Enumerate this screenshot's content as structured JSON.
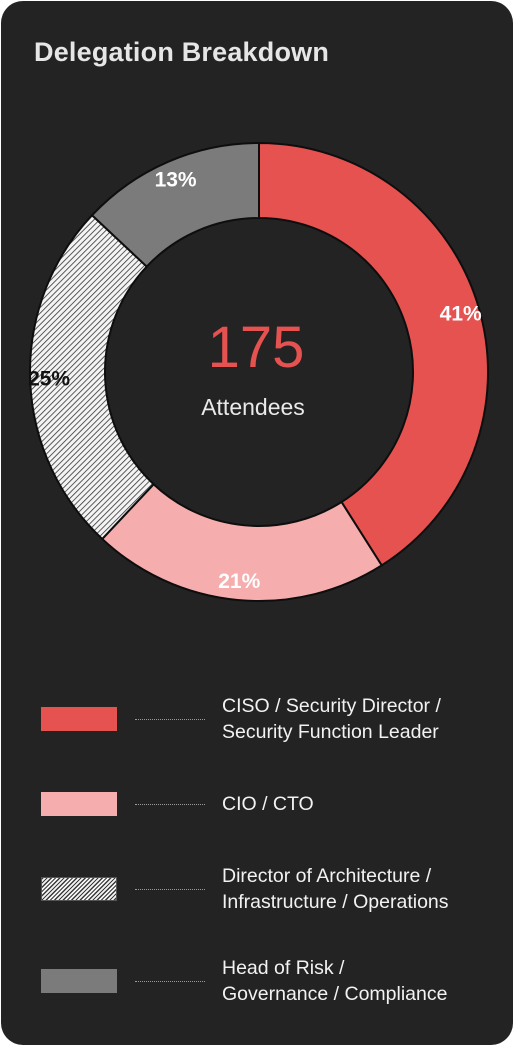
{
  "chart_data": {
    "type": "pie",
    "title": "Delegation Breakdown",
    "center": {
      "value": "175",
      "label": "Attendees"
    },
    "slices": [
      {
        "name": "CISO / Security Director / Security Function Leader",
        "lines": [
          "CISO / Security Director /",
          "Security Function Leader"
        ],
        "value": 41,
        "label": "41%",
        "color": "#e55250",
        "label_color": "#ffffff",
        "pattern": false
      },
      {
        "name": "CIO / CTO",
        "lines": [
          "CIO / CTO"
        ],
        "value": 21,
        "label": "21%",
        "color": "#f5adad",
        "label_color": "#ffffff",
        "pattern": false
      },
      {
        "name": "Director of Architecture / Infrastructure / Operations",
        "lines": [
          "Director of Architecture /",
          "Infrastructure / Operations"
        ],
        "value": 25,
        "label": "25%",
        "color": "#f4f4f4",
        "label_color": "#111111",
        "pattern": true
      },
      {
        "name": "Head of Risk / Governance / Compliance",
        "lines": [
          "Head of Risk /",
          "Governance / Compliance"
        ],
        "value": 13,
        "label": "13%",
        "color": "#7b7b7b",
        "label_color": "#ffffff",
        "pattern": false
      }
    ],
    "direction": "clockwise",
    "start": "top",
    "legend": "bottom"
  },
  "colors": {
    "card_background": "#232323",
    "accent": "#e55250",
    "text": "#e6e6e6"
  }
}
